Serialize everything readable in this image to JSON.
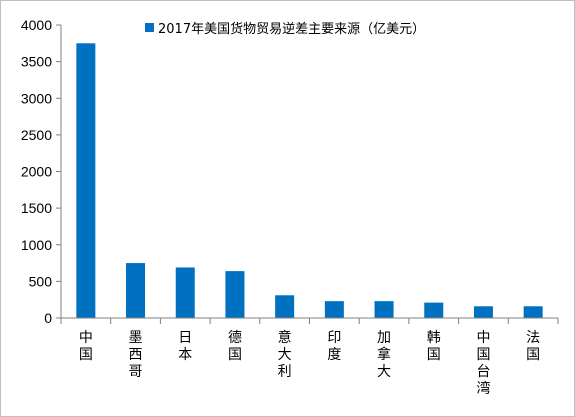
{
  "chart_data": {
    "type": "bar",
    "title": "",
    "xlabel": "",
    "ylabel": "",
    "categories": [
      "中国",
      "墨西哥",
      "日本",
      "德国",
      "意大利",
      "印度",
      "加拿大",
      "韩国",
      "中国台湾",
      "法国"
    ],
    "series": [
      {
        "name": "2017年美国货物贸易逆差主要来源（亿美元）",
        "values": [
          3750,
          750,
          690,
          640,
          310,
          230,
          230,
          210,
          160,
          160
        ]
      }
    ],
    "ylim": [
      0,
      4000
    ],
    "yticks": [
      "0",
      "500",
      "1000",
      "1500",
      "2000",
      "2500",
      "3000",
      "3500",
      "4000"
    ],
    "grid": false,
    "legend_position": "top-right",
    "colors": {
      "bar": "#0070c0",
      "axis": "#808080"
    }
  }
}
